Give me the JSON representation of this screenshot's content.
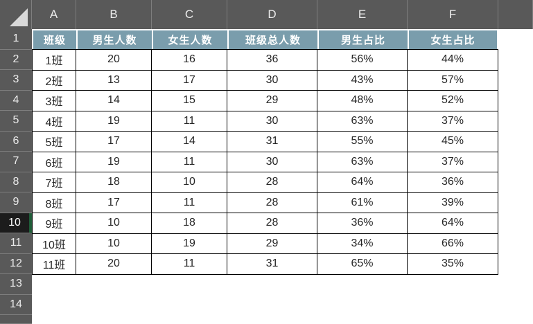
{
  "spreadsheet": {
    "icons": {
      "select_all": "corner-triangle"
    },
    "column_letters": [
      "A",
      "B",
      "C",
      "D",
      "E",
      "F"
    ],
    "row_numbers": [
      "1",
      "2",
      "3",
      "4",
      "5",
      "6",
      "7",
      "8",
      "9",
      "10",
      "11",
      "12",
      "13",
      "14"
    ],
    "active_row": "10",
    "table": {
      "headers": [
        "班级",
        "男生人数",
        "女生人数",
        "班级总人数",
        "男生占比",
        "女生占比"
      ],
      "rows": [
        [
          "1班",
          "20",
          "16",
          "36",
          "56%",
          "44%"
        ],
        [
          "2班",
          "13",
          "17",
          "30",
          "43%",
          "57%"
        ],
        [
          "3班",
          "14",
          "15",
          "29",
          "48%",
          "52%"
        ],
        [
          "4班",
          "19",
          "11",
          "30",
          "63%",
          "37%"
        ],
        [
          "5班",
          "17",
          "14",
          "31",
          "55%",
          "45%"
        ],
        [
          "6班",
          "19",
          "11",
          "30",
          "63%",
          "37%"
        ],
        [
          "7班",
          "18",
          "10",
          "28",
          "64%",
          "36%"
        ],
        [
          "8班",
          "17",
          "11",
          "28",
          "61%",
          "39%"
        ],
        [
          "9班",
          "10",
          "18",
          "28",
          "36%",
          "64%"
        ],
        [
          "10班",
          "10",
          "19",
          "29",
          "34%",
          "66%"
        ],
        [
          "11班",
          "20",
          "11",
          "31",
          "65%",
          "35%"
        ]
      ]
    },
    "colors": {
      "header_band": "#595959",
      "band_divider": "#7e7e7e",
      "band_text": "#ececec",
      "title_fill": "#7a9dac",
      "title_text": "#ffffff",
      "cell_border": "#000000",
      "cell_text": "#262626",
      "active_row_bg": "#1c1c1c",
      "active_row_accent": "#1f5c38"
    }
  }
}
